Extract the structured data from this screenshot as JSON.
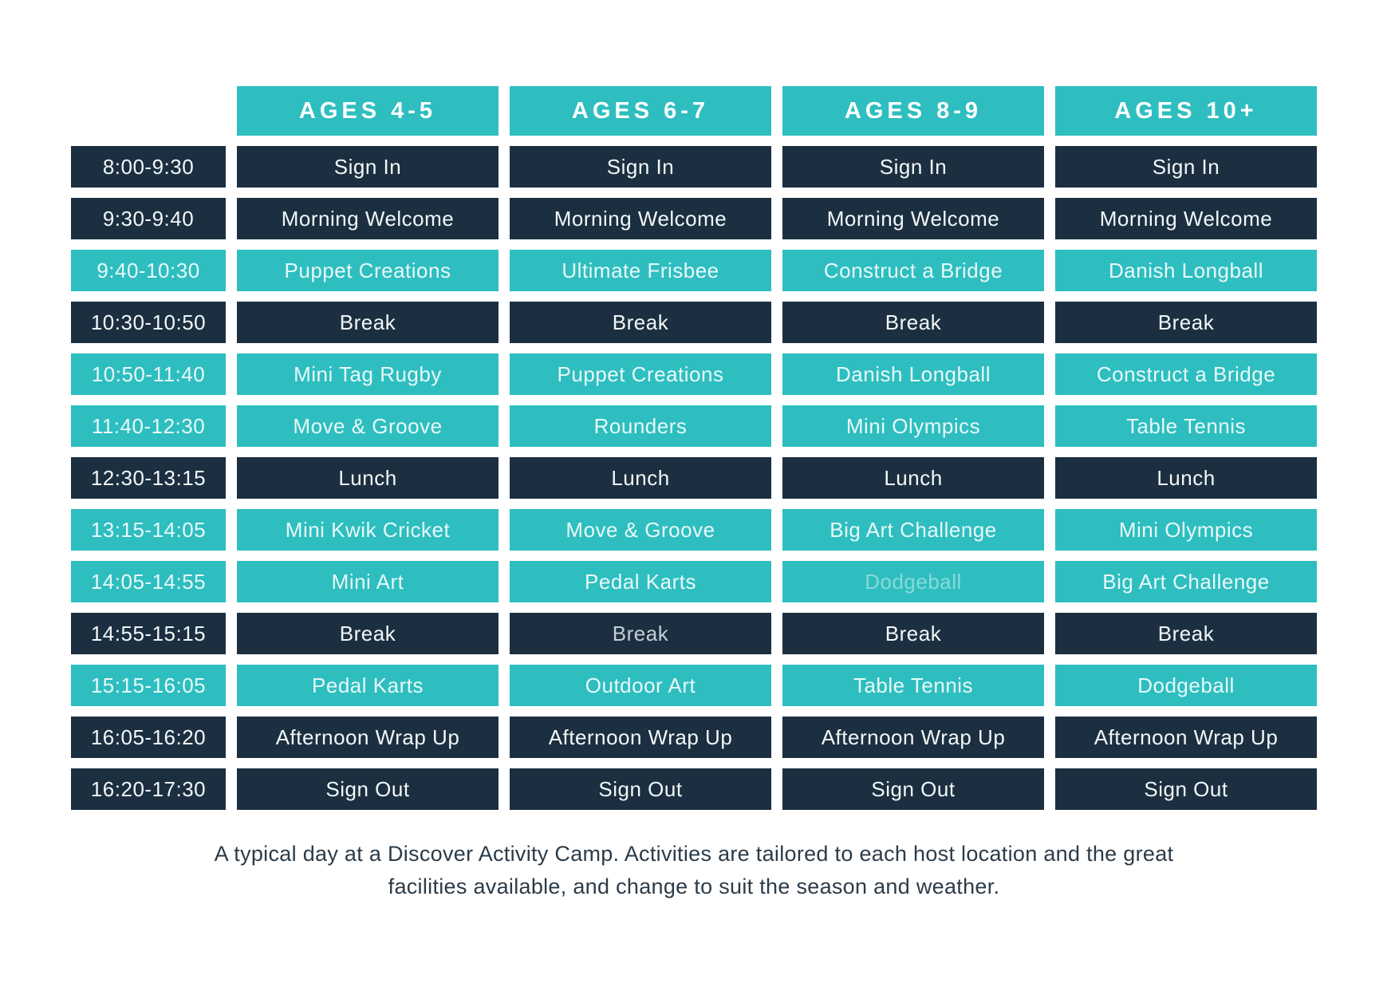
{
  "colors": {
    "page_bg": "#ffffff",
    "teal": "#2ebec0",
    "navy": "#1b2f40",
    "header_text": "#ffffff",
    "text_on_navy": "#f2f7f8",
    "text_on_teal": "#e8f8f8",
    "muted_teal_text": "#8ad9d9",
    "muted_grey_text": "#c4ced5",
    "caption_text": "#2b3b49"
  },
  "table": {
    "age_groups": [
      "AGES 4-5",
      "AGES 6-7",
      "AGES 8-9",
      "AGES 10+"
    ],
    "rows": [
      {
        "time": "8:00-9:30",
        "tone": "navy",
        "cells": [
          "Sign In",
          "Sign In",
          "Sign In",
          "Sign In"
        ]
      },
      {
        "time": "9:30-9:40",
        "tone": "navy",
        "cells": [
          "Morning Welcome",
          "Morning Welcome",
          "Morning Welcome",
          "Morning Welcome"
        ]
      },
      {
        "time": "9:40-10:30",
        "tone": "teal",
        "cells": [
          "Puppet Creations",
          "Ultimate Frisbee",
          "Construct a Bridge",
          "Danish Longball"
        ]
      },
      {
        "time": "10:30-10:50",
        "tone": "navy",
        "cells": [
          "Break",
          "Break",
          "Break",
          "Break"
        ]
      },
      {
        "time": "10:50-11:40",
        "tone": "teal",
        "cells": [
          "Mini Tag Rugby",
          "Puppet Creations",
          "Danish Longball",
          "Construct a Bridge"
        ]
      },
      {
        "time": "11:40-12:30",
        "tone": "teal",
        "cells": [
          "Move & Groove",
          "Rounders",
          "Mini Olympics",
          "Table Tennis"
        ]
      },
      {
        "time": "12:30-13:15",
        "tone": "navy",
        "cells": [
          "Lunch",
          "Lunch",
          "Lunch",
          "Lunch"
        ]
      },
      {
        "time": "13:15-14:05",
        "tone": "teal",
        "cells": [
          "Mini Kwik Cricket",
          "Move & Groove",
          "Big Art Challenge",
          "Mini Olympics"
        ]
      },
      {
        "time": "14:05-14:55",
        "tone": "teal",
        "cells": [
          "Mini Art",
          "Pedal Karts",
          "Dodgeball",
          "Big Art Challenge"
        ],
        "cell_variants": [
          null,
          null,
          "muted-teal",
          null
        ]
      },
      {
        "time": "14:55-15:15",
        "tone": "navy",
        "cells": [
          "Break",
          "Break",
          "Break",
          "Break"
        ],
        "cell_variants": [
          null,
          "muted-grey",
          null,
          null
        ]
      },
      {
        "time": "15:15-16:05",
        "tone": "teal",
        "cells": [
          "Pedal Karts",
          "Outdoor Art",
          "Table Tennis",
          "Dodgeball"
        ]
      },
      {
        "time": "16:05-16:20",
        "tone": "navy",
        "cells": [
          "Afternoon Wrap Up",
          "Afternoon Wrap Up",
          "Afternoon Wrap Up",
          "Afternoon Wrap Up"
        ]
      },
      {
        "time": "16:20-17:30",
        "tone": "navy",
        "cells": [
          "Sign Out",
          "Sign Out",
          "Sign Out",
          "Sign Out"
        ]
      }
    ]
  },
  "caption": {
    "lines": [
      "A typical day at a Discover Activity Camp. Activities are tailored to each host location and the great",
      "facilities available,  and change to suit the season and weather."
    ]
  }
}
